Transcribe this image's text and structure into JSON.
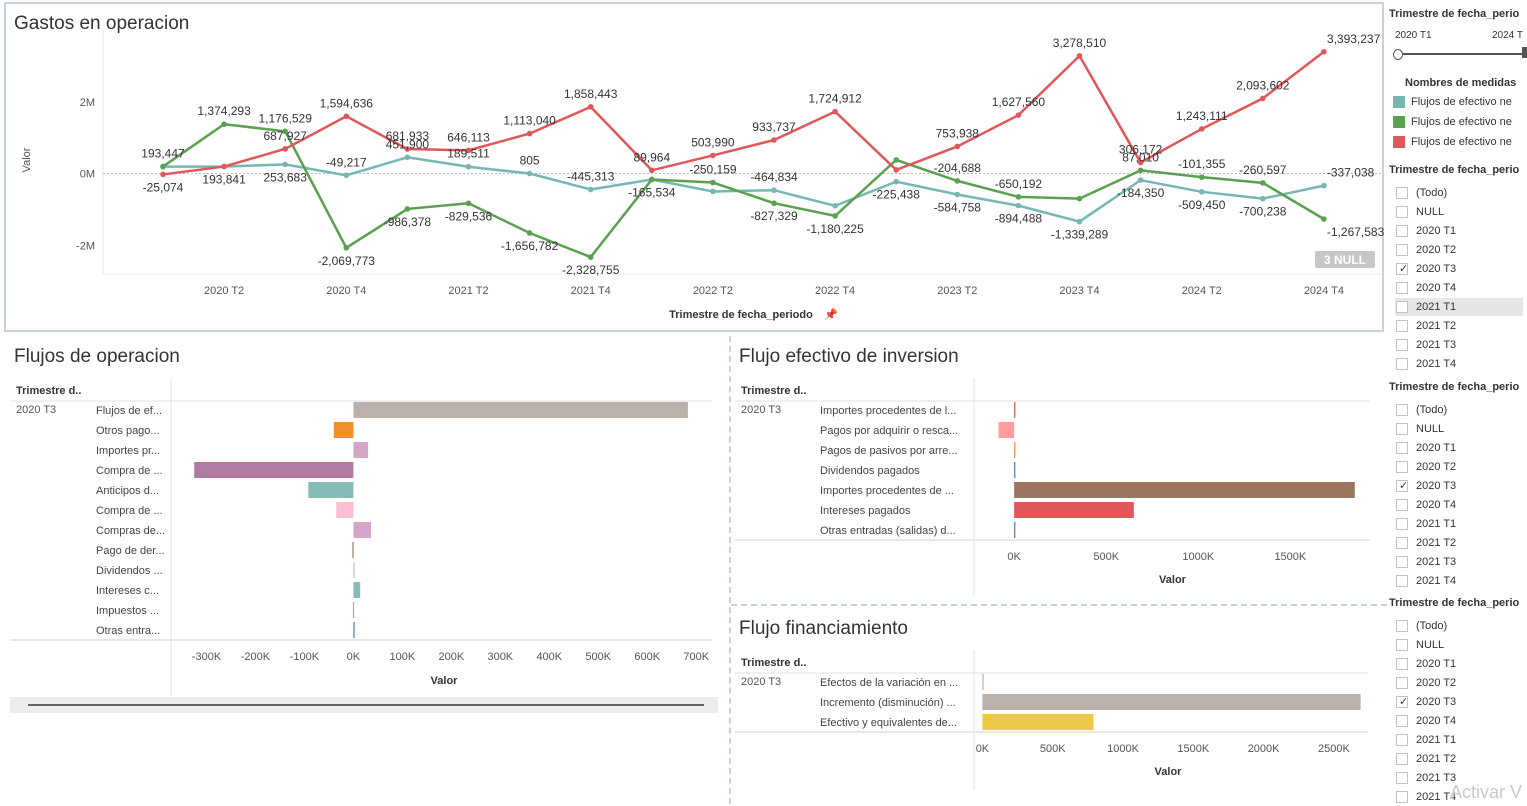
{
  "top_chart": {
    "title": "Gastos en operacion",
    "ylabel": "Valor",
    "xlabel": "Trimestre de fecha_periodo",
    "null_badge": "3 NULL",
    "y_ticks": [
      "2M",
      "0M",
      "-2M"
    ],
    "x_ticks": [
      "2020 T2",
      "2020 T4",
      "2021 T2",
      "2021 T4",
      "2022 T2",
      "2022 T4",
      "2023 T2",
      "2023 T4",
      "2024 T2",
      "2024 T4"
    ]
  },
  "ops_panel": {
    "title": "Flujos de operacion",
    "header": "Trimestre d..",
    "quarter": "2020 T3",
    "xlabel": "Valor",
    "x_ticks": [
      "-300K",
      "-200K",
      "-100K",
      "0K",
      "100K",
      "200K",
      "300K",
      "400K",
      "500K",
      "600K",
      "700K"
    ]
  },
  "inv_panel": {
    "title": "Flujo efectivo de inversion",
    "header": "Trimestre d..",
    "quarter": "2020 T3",
    "xlabel": "Valor",
    "x_ticks": [
      "0K",
      "500K",
      "1000K",
      "1500K"
    ]
  },
  "fin_panel": {
    "title": "Flujo financiamiento",
    "header": "Trimestre d..",
    "quarter": "2020 T3",
    "xlabel": "Valor",
    "x_ticks": [
      "0K",
      "500K",
      "1000K",
      "1500K",
      "2000K",
      "2500K"
    ]
  },
  "slider": {
    "title": "Trimestre de fecha_perio",
    "min_label": "2020 T1",
    "max_label": "2024 T"
  },
  "legend": {
    "title": "Nombres de medidas",
    "items": [
      {
        "label": "Flujos de efectivo ne",
        "color": "#76b7b2"
      },
      {
        "label": "Flujos de efectivo ne",
        "color": "#59a14f"
      },
      {
        "label": "Flujos de efectivo ne",
        "color": "#e15759"
      }
    ]
  },
  "filters": [
    {
      "title": "Trimestre de fecha_perio",
      "items": [
        "(Todo)",
        "NULL",
        "2020 T1",
        "2020 T2",
        "2020 T3",
        "2020 T4",
        "2021 T1",
        "2021 T2",
        "2021 T3",
        "2021 T4"
      ],
      "checked": 4,
      "highlight": 6
    },
    {
      "title": "Trimestre de fecha_perio",
      "items": [
        "(Todo)",
        "NULL",
        "2020 T1",
        "2020 T2",
        "2020 T3",
        "2020 T4",
        "2021 T1",
        "2021 T2",
        "2021 T3",
        "2021 T4"
      ],
      "checked": 4,
      "highlight": -1
    },
    {
      "title": "Trimestre de fecha_perio",
      "items": [
        "(Todo)",
        "NULL",
        "2020 T1",
        "2020 T2",
        "2020 T3",
        "2020 T4",
        "2021 T1",
        "2021 T2",
        "2021 T3",
        "2021 T4"
      ],
      "checked": 4,
      "highlight": -1
    }
  ],
  "watermark": "Activar V",
  "chart_data": [
    {
      "type": "line",
      "title": "Gastos en operacion",
      "xlabel": "Trimestre de fecha_periodo",
      "ylabel": "Valor",
      "x": [
        "2020 T1",
        "2020 T2",
        "2020 T3",
        "2020 T4",
        "2021 T1",
        "2021 T2",
        "2021 T3",
        "2021 T4",
        "2022 T1",
        "2022 T2",
        "2022 T3",
        "2022 T4",
        "2023 T1",
        "2023 T2",
        "2023 T3",
        "2023 T4",
        "2024 T1",
        "2024 T2",
        "2024 T3",
        "2024 T4"
      ],
      "ylim": [
        -2800000,
        4000000
      ],
      "series": [
        {
          "color": "#76b7b2",
          "values": [
            193447,
            193841,
            253683,
            -49217,
            451900,
            189511,
            805,
            -445313,
            -165534,
            -500000,
            -464834,
            -900000,
            -225438,
            -584758,
            -894488,
            -1339289,
            -184350,
            -509450,
            -700238,
            -337038
          ],
          "labels": [
            "193,447",
            "193,841",
            "253,683",
            "-49,217",
            "451,900",
            "189,511",
            "805",
            "-445,313",
            "-165,534",
            "",
            "-464,834",
            "",
            "-225,438",
            "-584,758",
            "-894,488",
            "-1,339,289",
            "-184,350",
            "-509,450",
            "-700,238",
            "-337,038"
          ]
        },
        {
          "color": "#59a14f",
          "values": [
            193447,
            1374293,
            1176529,
            -2069773,
            -986378,
            -829536,
            -1656782,
            -2328755,
            -165534,
            -250159,
            -827329,
            -1180225,
            380000,
            -204688,
            -650192,
            -700000,
            87010,
            -101355,
            -260597,
            -1267583
          ],
          "labels": [
            "",
            "1,374,293",
            "1,176,529",
            "-2,069,773",
            "-986,378",
            "-829,536",
            "-1,656,782",
            "-2,328,755",
            "",
            "-250,159",
            "-827,329",
            "-1,180,225",
            "",
            "-204,688",
            "-650,192",
            "",
            "87,010",
            "-101,355",
            "-260,597",
            "-1,267,583"
          ]
        },
        {
          "color": "#e15759",
          "values": [
            -25074,
            193841,
            687927,
            1594636,
            681933,
            646113,
            1113040,
            1858443,
            89964,
            503990,
            933737,
            1724912,
            100000,
            753938,
            1627560,
            3278510,
            306172,
            1243111,
            2093602,
            3393237
          ],
          "labels": [
            "-25,074",
            "",
            "687,927",
            "1,594,636",
            "681,933",
            "646,113",
            "1,113,040",
            "1,858,443",
            "89,964",
            "503,990",
            "933,737",
            "1,724,912",
            "",
            "753,938",
            "1,627,560",
            "3,278,510",
            "306,172",
            "1,243,111",
            "2,093,602",
            "3,393,237"
          ]
        }
      ]
    },
    {
      "type": "bar",
      "title": "Flujos de operacion",
      "xlabel": "Valor",
      "xlim": [
        -350000,
        720000
      ],
      "categories": [
        "Flujos de ef...",
        "Otros pago...",
        "Importes pr...",
        "Compra de ...",
        "Anticipos d...",
        "Compra de ...",
        "Compras de...",
        "Pago de der...",
        "Dividendos ...",
        "Intereses c...",
        "Impuestos ...",
        "Otras entra..."
      ],
      "values": [
        683000,
        -40000,
        30000,
        -325000,
        -92000,
        -35000,
        36000,
        -2000,
        1000,
        14000,
        -1000,
        1000
      ],
      "colors": [
        "#bab0ac",
        "#f28e2b",
        "#d4a6c8",
        "#b07aa1",
        "#86bcb6",
        "#fabfd2",
        "#d4a6c8",
        "#9d7660",
        "#d7b5a6",
        "#86bcb6",
        "#aaaaaa",
        "#4e79a7"
      ]
    },
    {
      "type": "bar",
      "title": "Flujo efectivo de inversion",
      "xlabel": "Valor",
      "xlim": [
        -180000,
        1900000
      ],
      "categories": [
        "Importes procedentes de l...",
        "Pagos por adquirir o resca...",
        "Pagos de pasivos por arre...",
        "Dividendos pagados",
        "Importes procedentes de ...",
        "Intereses pagados",
        "Otras entradas (salidas) d..."
      ],
      "values": [
        3000,
        -85000,
        2000,
        1000,
        1850000,
        650000,
        2000
      ],
      "colors": [
        "#e15759",
        "#ff9d9a",
        "#f28e2b",
        "#4e79a7",
        "#9c755f",
        "#e15759",
        "#4e79a7"
      ]
    },
    {
      "type": "bar",
      "title": "Flujo financiamiento",
      "xlabel": "Valor",
      "xlim": [
        -60000,
        2700000
      ],
      "categories": [
        "Efectos de la variación en ...",
        "Incremento (disminución) ...",
        "Efectivo y equivalentes de..."
      ],
      "values": [
        0,
        2690000,
        790000
      ],
      "colors": [
        "#bab0ac",
        "#bab0ac",
        "#edc948"
      ]
    }
  ]
}
